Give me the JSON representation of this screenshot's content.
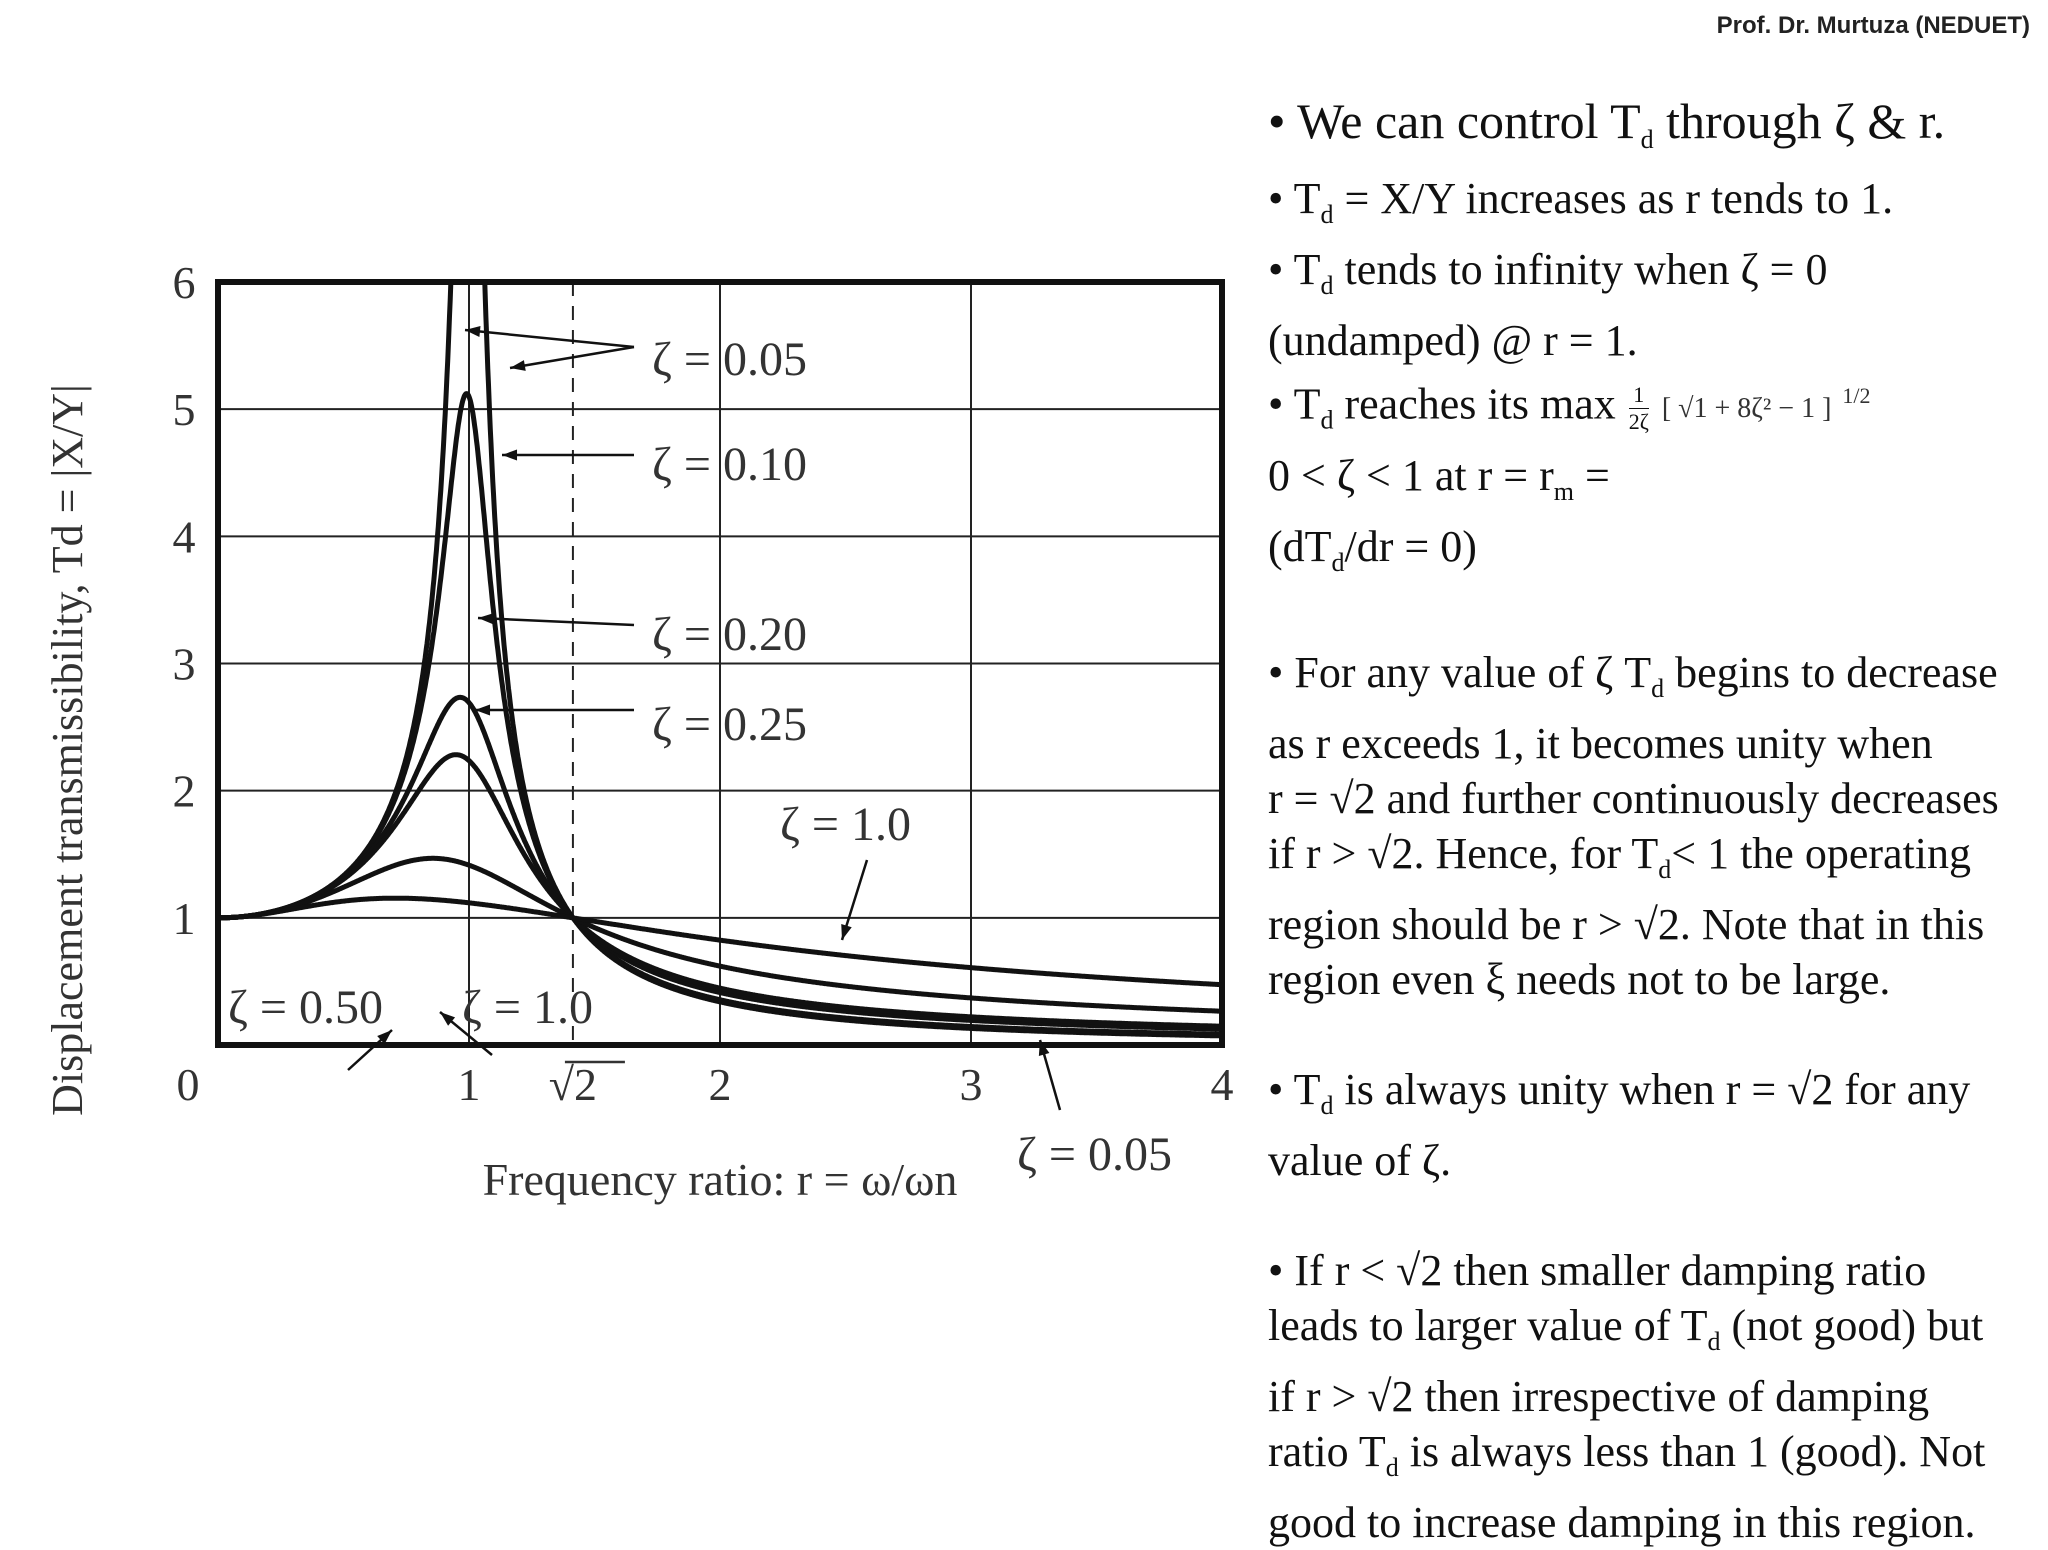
{
  "header": {
    "credit": "Prof. Dr. Murtuza (NEDUET)"
  },
  "chart_data": {
    "type": "line",
    "xlabel": "Frequency ratio: r = ω/ωn",
    "ylabel": "Displacement transmissibility, Td = |X/Y|",
    "xlim": [
      0,
      4
    ],
    "ylim": [
      0,
      6
    ],
    "x_ticks": [
      "0",
      "1",
      "√2",
      "2",
      "3",
      "4"
    ],
    "y_ticks": [
      "1",
      "2",
      "3",
      "4",
      "5",
      "6"
    ],
    "grid": true,
    "reference_line": {
      "x": 1.414,
      "style": "dashed"
    },
    "series": [
      {
        "name": "ζ = 0.05",
        "zeta": 0.05
      },
      {
        "name": "ζ = 0.10",
        "zeta": 0.1
      },
      {
        "name": "ζ = 0.20",
        "zeta": 0.2
      },
      {
        "name": "ζ = 0.25",
        "zeta": 0.25
      },
      {
        "name": "ζ = 0.50",
        "zeta": 0.5
      },
      {
        "name": "ζ = 1.0",
        "zeta": 1.0
      }
    ],
    "annotations": [
      "ζ = 0.05",
      "ζ = 0.10",
      "ζ = 0.20",
      "ζ = 0.25",
      "ζ = 1.0",
      "ζ = 0.50",
      "ζ = 1.0",
      "ζ = 0.05"
    ]
  },
  "text": {
    "b1": [
      "• We can control T",
      "d",
      " through ζ & r."
    ],
    "b2": [
      "• T",
      "d",
      " = X/Y increases as r tends to 1."
    ],
    "b3a": [
      "• T",
      "d",
      " tends to infinity when ζ = 0"
    ],
    "b3b": "(undamped) @ r = 1.",
    "b4a": [
      "• T",
      "d",
      " reaches its max"
    ],
    "b4_frac_num": "1",
    "b4_frac_den": "2ζ",
    "b4_formula": "[ √1 + 8ζ² − 1 ]",
    "b4_power": "1/2",
    "b4b": [
      "0 < ζ < 1 at r = r",
      "m",
      " ="
    ],
    "b4c": [
      "(dT",
      "d",
      "/dr = 0)"
    ],
    "b5a": [
      "• For any value of ζ T",
      "d",
      " begins to decrease"
    ],
    "b5b": "as r exceeds 1, it becomes unity when",
    "b5c": "r = √2 and  further continuously decreases",
    "b5d": [
      "if r > √2. Hence, for T",
      "d",
      "< 1 the operating"
    ],
    "b5e": "region should be r > √2. Note that in this",
    "b5f": "region even ξ needs not to be large.",
    "b6a": [
      "• T",
      "d",
      " is always unity when r = √2 for any"
    ],
    "b6b": "value of ζ.",
    "b7a": "• If r < √2 then smaller damping ratio",
    "b7b": [
      "leads to larger value of T",
      "d",
      " (not good) but"
    ],
    "b7c": "if r > √2 then irrespective of damping",
    "b7d": [
      "ratio T",
      "d",
      " is always less than 1 (good). Not"
    ],
    "b7e": "good to increase damping in this region."
  }
}
